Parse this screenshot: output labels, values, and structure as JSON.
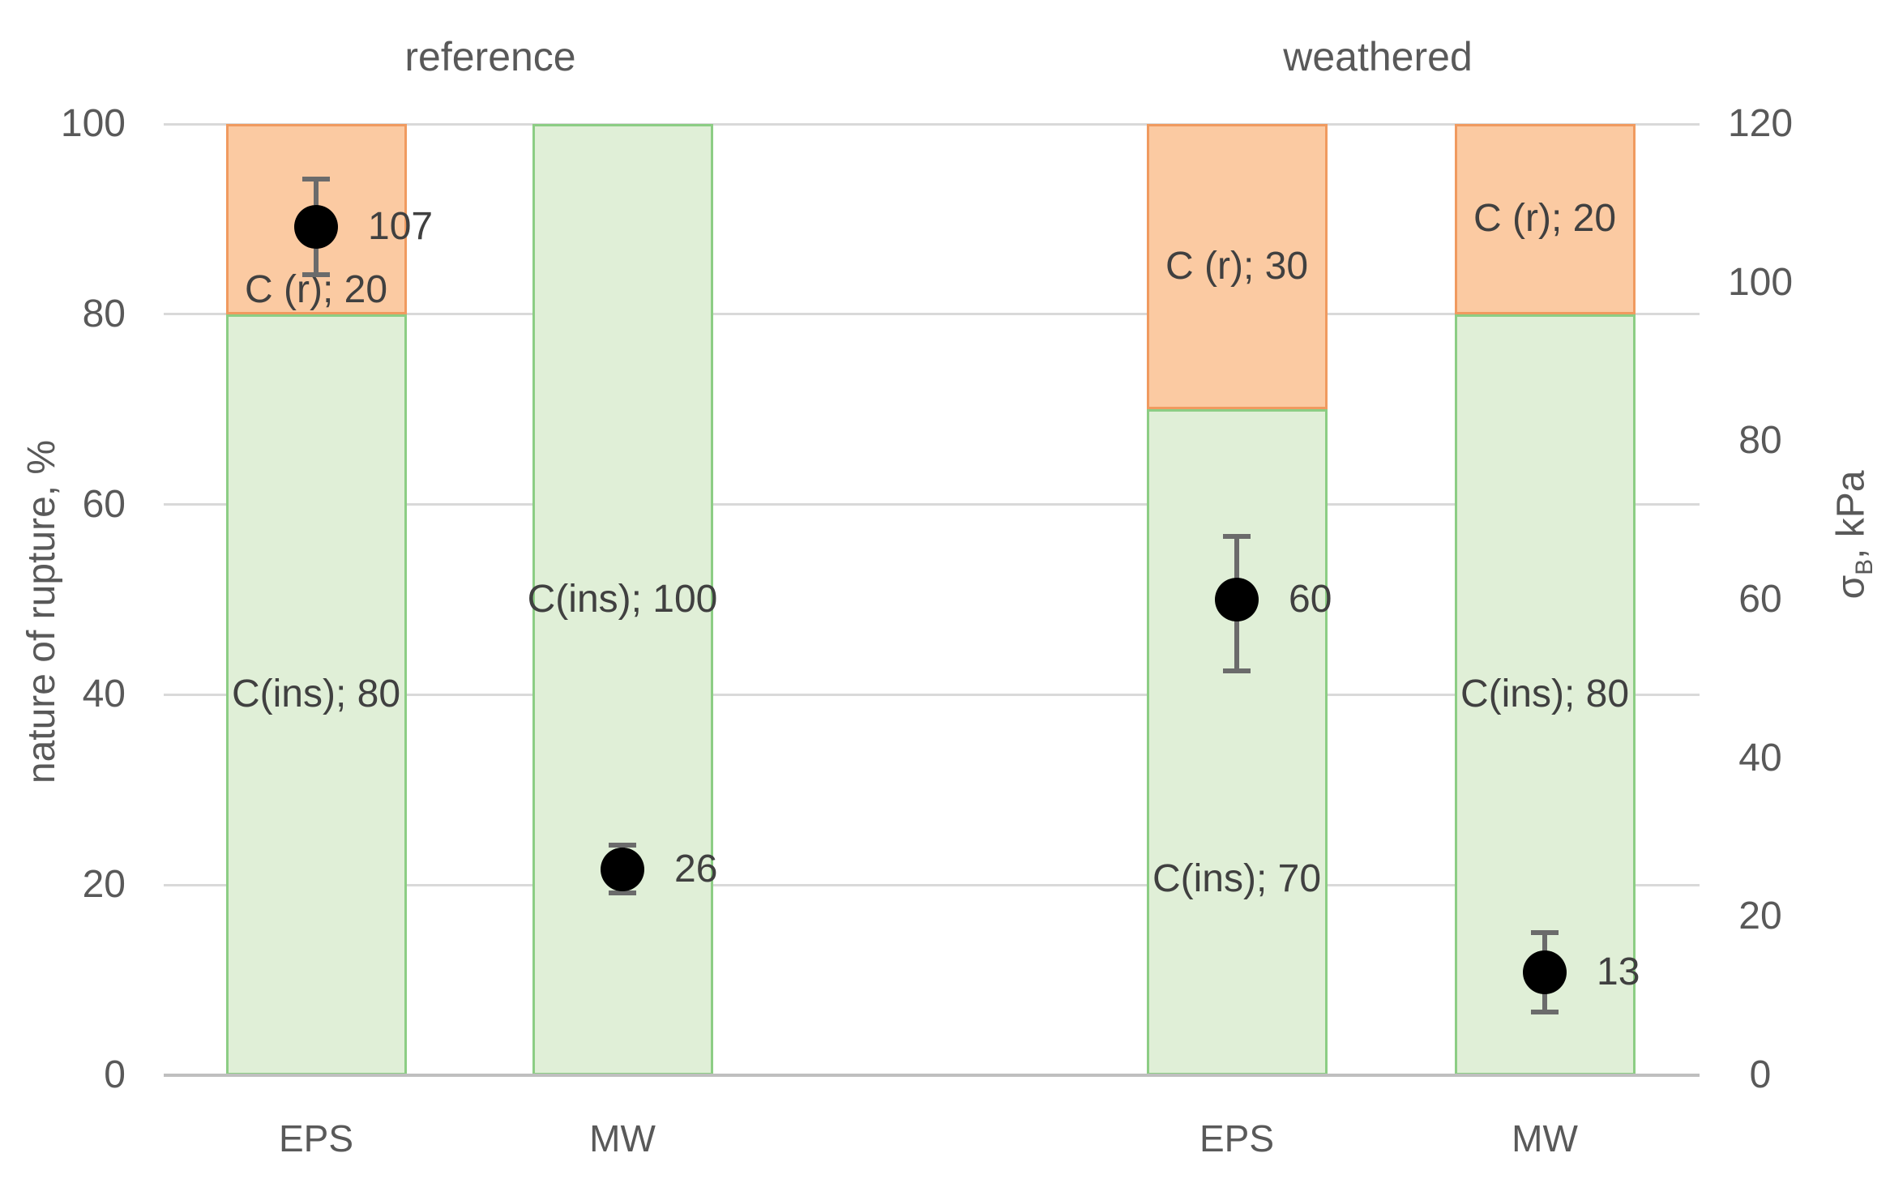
{
  "chart_data": {
    "type": "bar",
    "stacked": true,
    "orientation": "vertical",
    "grid": true,
    "legend": "none",
    "title_groups": [
      "reference",
      "weathered"
    ],
    "categories": [
      "EPS",
      "MW",
      "EPS",
      "MW"
    ],
    "axes": {
      "left": {
        "title": "nature of rupture, %",
        "min": 0,
        "max": 100,
        "ticks": [
          0,
          20,
          40,
          60,
          80,
          100
        ]
      },
      "right": {
        "title": "σB, kPa",
        "title_parts": {
          "base": "σ",
          "sub": "B",
          "rest": ", kPa"
        },
        "min": 0,
        "max": 120,
        "ticks": [
          0,
          20,
          40,
          60,
          80,
          100,
          120
        ]
      }
    },
    "series": [
      {
        "name": "C(ins)",
        "fill": "#E0EFD7",
        "border": "#8CCD84"
      },
      {
        "name": "C (r)",
        "fill": "#FBCAA2",
        "border": "#F09A5F"
      }
    ],
    "bars": [
      {
        "category": "EPS",
        "group": "reference",
        "segments": [
          {
            "series": 0,
            "value": 80,
            "label": "C(ins); 80",
            "label_at_pct": 40
          },
          {
            "series": 1,
            "value": 20,
            "label": "C (r); 20",
            "label_at_pct": 82.5
          }
        ],
        "point": {
          "value_kpa": 107,
          "label": "107",
          "err_minus": 6,
          "err_plus": 6
        }
      },
      {
        "category": "MW",
        "group": "reference",
        "segments": [
          {
            "series": 0,
            "value": 100,
            "label": "C(ins); 100",
            "label_at_pct": 50
          }
        ],
        "point": {
          "value_kpa": 26,
          "label": "26",
          "err_minus": 3,
          "err_plus": 3
        }
      },
      {
        "category": "EPS",
        "group": "weathered",
        "segments": [
          {
            "series": 0,
            "value": 70,
            "label": "C(ins); 70",
            "label_at_pct": 20.6
          },
          {
            "series": 1,
            "value": 30,
            "label": "C (r); 30",
            "label_at_pct": 85
          }
        ],
        "point": {
          "value_kpa": 60,
          "label": "60",
          "err_minus": 9,
          "err_plus": 8
        }
      },
      {
        "category": "MW",
        "group": "weathered",
        "segments": [
          {
            "series": 0,
            "value": 80,
            "label": "C(ins); 80",
            "label_at_pct": 40
          },
          {
            "series": 1,
            "value": 20,
            "label": "C (r); 20",
            "label_at_pct": 90
          }
        ],
        "point": {
          "value_kpa": 13,
          "label": "13",
          "err_minus": 5,
          "err_plus": 5
        }
      }
    ],
    "colors": {
      "gridline": "#D9D9D9",
      "baseline": "#BFBFBF",
      "dot": "#000000",
      "whisker": "#6B6B6B",
      "axis_text": "#595959",
      "label_text": "#404040",
      "green_fill": "#E0EFD7",
      "green_border": "#8CCD84",
      "orange_fill": "#FBCAA2",
      "orange_border": "#F09A5F"
    }
  }
}
